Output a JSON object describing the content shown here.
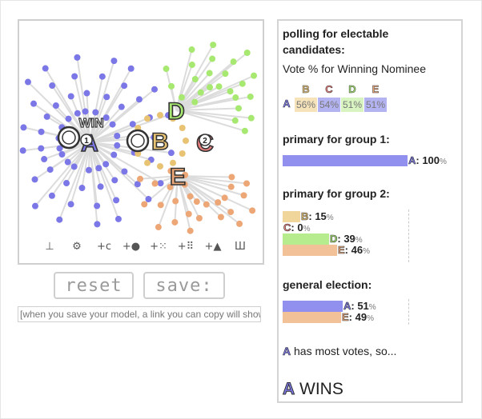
{
  "colors": {
    "A": "#7b77e6",
    "B": "#e9c374",
    "C": "#e77d7d",
    "D": "#a6e870",
    "E": "#eda777",
    "barA": "#9190ef",
    "barB": "#f0d69a",
    "barD": "#b7ec8e",
    "barE": "#f3c198"
  },
  "sim": {
    "win_label": "WIN",
    "candidates": [
      {
        "letter": "A",
        "color": "#7b77e6",
        "rank": "1",
        "is_winner": true
      },
      {
        "letter": "B",
        "color": "#e9c374"
      },
      {
        "letter": "C",
        "color": "#e77d7d",
        "rank": "2"
      },
      {
        "letter": "D",
        "color": "#a6e870"
      },
      {
        "letter": "E",
        "color": "#eda777"
      }
    ],
    "tools": [
      {
        "name": "voter-tool-icon",
        "glyph": "⊥"
      },
      {
        "name": "gear-icon",
        "glyph": "⚙"
      },
      {
        "name": "add-candidate-icon",
        "glyph": "+c"
      },
      {
        "name": "add-voter-icon",
        "glyph": "+●"
      },
      {
        "name": "add-crowd-icon",
        "glyph": "+⁙"
      },
      {
        "name": "add-grid-icon",
        "glyph": "+⠿"
      },
      {
        "name": "add-triangle-icon",
        "glyph": "+▲"
      },
      {
        "name": "delete-icon",
        "glyph": "Ш"
      }
    ]
  },
  "buttons": {
    "reset": "reset",
    "save": "save:"
  },
  "note": "[when you save your model, a link you can copy will show up here]",
  "panel": {
    "polling_title": "polling for electable candidates:",
    "polling_sub": "Vote % for Winning Nominee",
    "polling_row": "A",
    "polling": [
      {
        "letter": "B",
        "value": "56%",
        "color": "#e9c374",
        "fill": "#f6e3b9"
      },
      {
        "letter": "C",
        "value": "54%",
        "color": "#e77d7d",
        "fill": "#b4b3f2"
      },
      {
        "letter": "D",
        "value": "51%",
        "color": "#a6e870",
        "fill": "#d8f4c0"
      },
      {
        "letter": "E",
        "value": "51%",
        "color": "#eda777",
        "fill": "#b4b3f2"
      }
    ],
    "primary1_title": "primary for group 1:",
    "primary1": [
      {
        "letter": "A",
        "value": "100",
        "unit": "%",
        "share": 1.0,
        "color": "#9190ef"
      }
    ],
    "primary2_title": "primary for group 2:",
    "primary2": [
      {
        "letter": "B",
        "value": "15",
        "unit": "%",
        "share": 0.15,
        "color": "#f0d69a"
      },
      {
        "letter": "C",
        "value": "0",
        "unit": "%",
        "share": 0.0,
        "color": "#e77d7d"
      },
      {
        "letter": "D",
        "value": "39",
        "unit": "%",
        "share": 0.39,
        "color": "#b7ec8e"
      },
      {
        "letter": "E",
        "value": "46",
        "unit": "%",
        "share": 0.46,
        "color": "#f3c198"
      }
    ],
    "general_title": "general election:",
    "general": [
      {
        "letter": "A",
        "value": "51",
        "unit": "%",
        "share": 0.51,
        "color": "#9190ef"
      },
      {
        "letter": "E",
        "value": "49",
        "unit": "%",
        "share": 0.49,
        "color": "#f3c198"
      }
    ],
    "result_letter": "A",
    "result_text": "has most votes, so...",
    "winner_letter": "A",
    "winner_text": "WINS"
  }
}
